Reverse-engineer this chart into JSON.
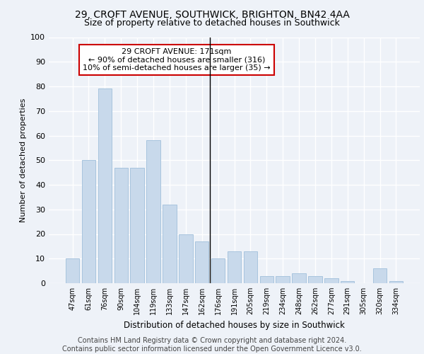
{
  "title1": "29, CROFT AVENUE, SOUTHWICK, BRIGHTON, BN42 4AA",
  "title2": "Size of property relative to detached houses in Southwick",
  "xlabel": "Distribution of detached houses by size in Southwick",
  "ylabel": "Number of detached properties",
  "categories": [
    "47sqm",
    "61sqm",
    "76sqm",
    "90sqm",
    "104sqm",
    "119sqm",
    "133sqm",
    "147sqm",
    "162sqm",
    "176sqm",
    "191sqm",
    "205sqm",
    "219sqm",
    "234sqm",
    "248sqm",
    "262sqm",
    "277sqm",
    "291sqm",
    "305sqm",
    "320sqm",
    "334sqm"
  ],
  "values": [
    10,
    50,
    79,
    47,
    47,
    58,
    32,
    20,
    17,
    10,
    13,
    13,
    3,
    3,
    4,
    3,
    2,
    1,
    0,
    6,
    1
  ],
  "bar_color": "#c8d9eb",
  "bar_edge_color": "#a8c4de",
  "vline_color": "#000000",
  "annotation_text": "29 CROFT AVENUE: 171sqm\n← 90% of detached houses are smaller (316)\n10% of semi-detached houses are larger (35) →",
  "annotation_box_color": "#ffffff",
  "annotation_border_color": "#cc0000",
  "ylim": [
    0,
    100
  ],
  "yticks": [
    0,
    10,
    20,
    30,
    40,
    50,
    60,
    70,
    80,
    90,
    100
  ],
  "background_color": "#eef2f8",
  "grid_color": "#ffffff",
  "footer_text": "Contains HM Land Registry data © Crown copyright and database right 2024.\nContains public sector information licensed under the Open Government Licence v3.0.",
  "title1_fontsize": 10,
  "title2_fontsize": 9,
  "annotation_fontsize": 8,
  "footer_fontsize": 7,
  "ylabel_fontsize": 8,
  "xlabel_fontsize": 8.5
}
